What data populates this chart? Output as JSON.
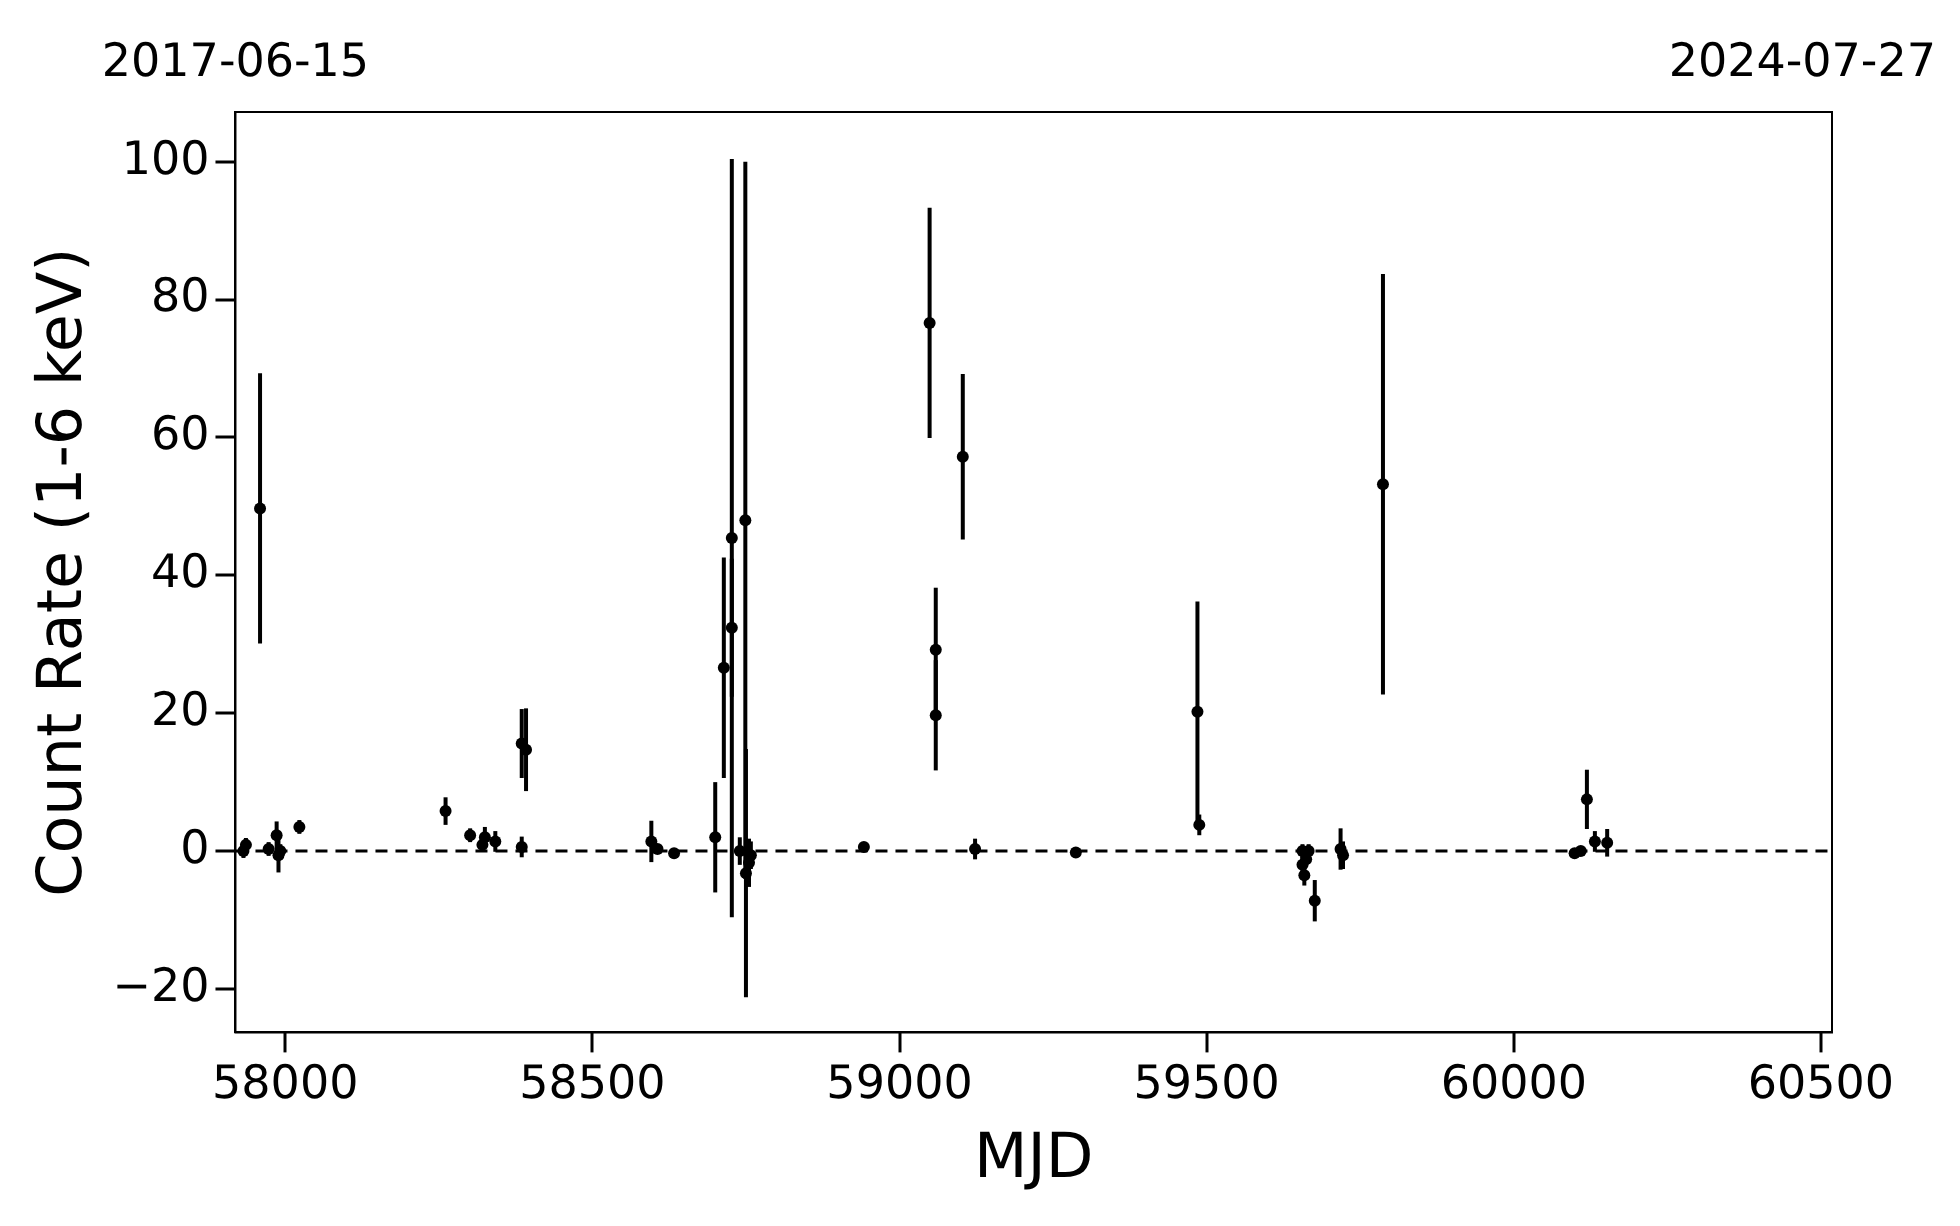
{
  "chart_data": {
    "type": "scatter",
    "xlabel": "MJD",
    "ylabel": "Count Rate (1-6 keV)",
    "x": [
      57932,
      57936,
      57959,
      57973,
      57986,
      57989,
      57992,
      58023,
      58261,
      58301,
      58321,
      58325,
      58342,
      58385,
      58392,
      58385,
      58596,
      58606,
      58633,
      58700,
      58714,
      58727,
      58727,
      58749,
      58750,
      58740,
      58755,
      58758,
      58942,
      59049,
      59059,
      59059,
      59103,
      59123,
      59287,
      59485,
      59488,
      59656,
      59656,
      59659,
      59662,
      59666,
      59676,
      59718,
      59722,
      59787,
      60099,
      60109,
      60119,
      60132,
      60152
    ],
    "values": [
      0,
      0.9,
      49.7,
      0.3,
      2.3,
      -0.6,
      0,
      3.5,
      5.8,
      2.3,
      0.9,
      2.0,
      1.4,
      15.6,
      14.7,
      0.6,
      1.4,
      0.3,
      -0.3,
      2.0,
      26.6,
      45.4,
      32.4,
      48.0,
      -3.2,
      0,
      -1.7,
      -0.6,
      0.6,
      76.6,
      29.2,
      19.7,
      57.2,
      0.3,
      -0.2,
      20.2,
      3.8,
      0,
      -2.0,
      -3.5,
      -1.2,
      0,
      -7.2,
      0.3,
      -0.6,
      53.2,
      -0.3,
      0,
      7.5,
      1.4,
      1.2
    ],
    "errors": [
      1,
      1,
      19.6,
      1,
      2,
      2.5,
      1,
      1,
      2,
      1,
      1,
      1.5,
      1.5,
      5,
      6,
      1.5,
      3,
      0.5,
      0.5,
      8,
      16,
      55,
      10,
      52,
      18,
      2,
      3.5,
      2,
      0.5,
      16.7,
      9,
      8,
      12,
      1.5,
      0.5,
      16,
      1.5,
      1,
      1.5,
      1.5,
      1,
      1,
      3,
      3,
      2,
      30.5,
      0.5,
      0.5,
      4.3,
      1.5,
      2
    ],
    "color": "#000000",
    "marker": "circle",
    "xlim": [
      57919,
      60518
    ],
    "xticks": [
      58000,
      58500,
      59000,
      59500,
      60000,
      60500
    ],
    "ylim": [
      -26.3,
      107.2
    ],
    "yticks": [
      {
        "value": -20,
        "label": "−20"
      },
      0,
      20,
      40,
      60,
      80,
      100
    ],
    "annotations": [
      "2017-06-15",
      "2024-07-27"
    ],
    "ref_lines": [
      {
        "axis": "y",
        "value": 0,
        "color": "#000000",
        "line_style": "dashed"
      }
    ],
    "grid": false,
    "legend": false
  }
}
